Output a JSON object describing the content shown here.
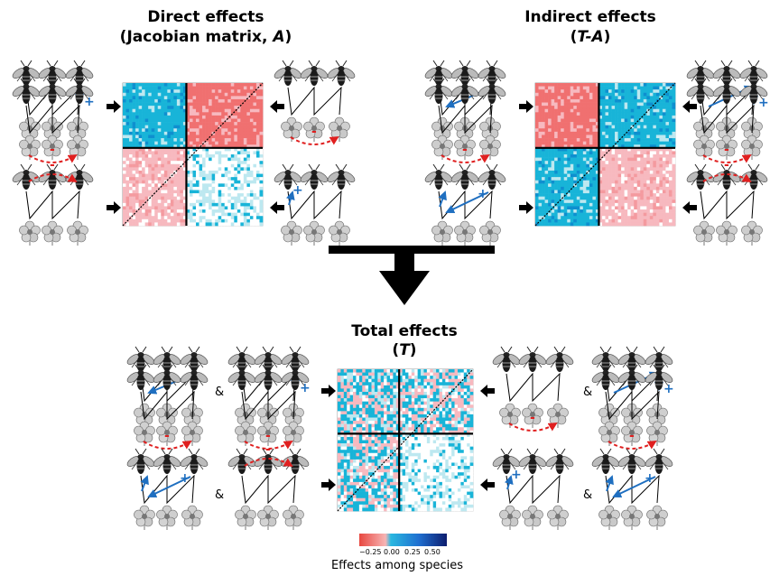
{
  "titles": {
    "direct": {
      "line1": "Direct effects",
      "line2_pre": "(Jacobian matrix, ",
      "line2_em": "A",
      "line2_post": ")"
    },
    "indirect": {
      "line1": "Indirect effects",
      "line2_pre": "(",
      "line2_em": "T-A",
      "line2_post": ")"
    },
    "total": {
      "line1": "Total effects",
      "line2_pre": "(",
      "line2_em": "T",
      "line2_post": ")"
    }
  },
  "symbols": {
    "plus": "+",
    "minus": "-",
    "and": "&"
  },
  "colorbar": {
    "ticks": [
      "−0.25",
      "0.00",
      "0.25",
      "0.50"
    ],
    "label": "Effects among species",
    "colors": [
      "#e8473f",
      "#f7b5b5",
      "#29b8e0",
      "#1f6fd0",
      "#0d1d6e"
    ]
  },
  "colors": {
    "negative": "#f07070",
    "negative_light": "#f7b9bf",
    "positive": "#18b4d8",
    "positive_light": "#bde8f0",
    "arrow_blue": "#1f6fc0",
    "arrow_red": "#e02020",
    "plus_color": "#1f6fc0",
    "minus_color": "#e02020"
  }
}
